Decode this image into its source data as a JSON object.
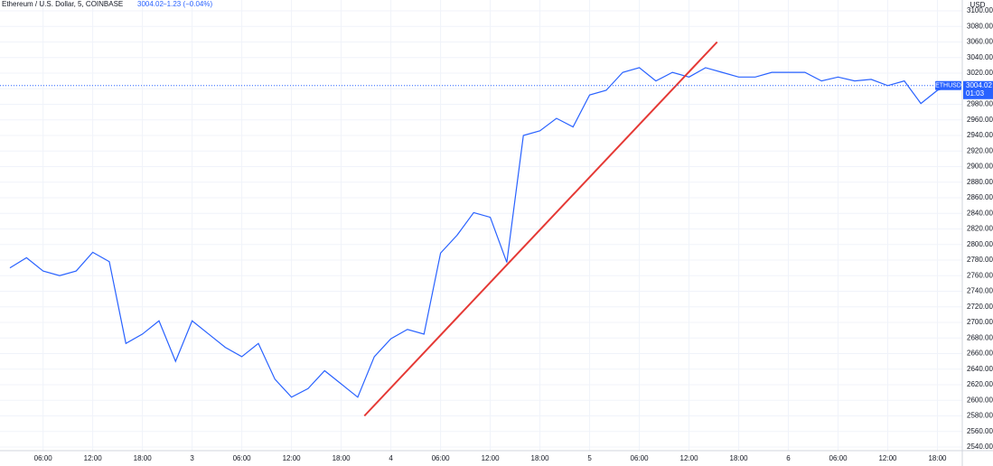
{
  "chart_data": {
    "type": "line",
    "title": "Ethereum / U.S. Dollar, 5, COINBASE",
    "last": 3004.02,
    "change": "−1.23 (−0.04%)",
    "symbol": "ETHUSD",
    "countdown": "01:03",
    "currency": "USD",
    "series": [
      {
        "name": "ETHUSD",
        "color": "#2962ff",
        "values": [
          2770,
          2783,
          2766,
          2760,
          2766,
          2790,
          2778,
          2673,
          2685,
          2702,
          2650,
          2702,
          2685,
          2668,
          2656,
          2673,
          2627,
          2604,
          2615,
          2638,
          2621,
          2604,
          2656,
          2679,
          2691,
          2685,
          2789,
          2812,
          2841,
          2835,
          2777,
          2940,
          2946,
          2962,
          2951,
          2992,
          2998,
          3021,
          3027,
          3010,
          3021,
          3015,
          3027,
          3021,
          3015,
          3015,
          3021,
          3021,
          3021,
          3010,
          3015,
          3010,
          3012,
          3004,
          3010,
          2981,
          2998,
          3004
        ]
      }
    ],
    "trendline": {
      "color": "#e53935",
      "x": [
        21.4,
        42.7
      ],
      "values": [
        2580,
        3060
      ]
    },
    "xlim": [
      -0.6,
      57.5
    ],
    "xticks": [
      {
        "value": 2,
        "label": "06:00"
      },
      {
        "value": 5,
        "label": "12:00"
      },
      {
        "value": 8,
        "label": "18:00"
      },
      {
        "value": 11,
        "label": "3"
      },
      {
        "value": 14,
        "label": "06:00"
      },
      {
        "value": 17,
        "label": "12:00"
      },
      {
        "value": 20,
        "label": "18:00"
      },
      {
        "value": 23,
        "label": "4"
      },
      {
        "value": 26,
        "label": "06:00"
      },
      {
        "value": 29,
        "label": "12:00"
      },
      {
        "value": 32,
        "label": "18:00"
      },
      {
        "value": 35,
        "label": "5"
      },
      {
        "value": 38,
        "label": "06:00"
      },
      {
        "value": 41,
        "label": "12:00"
      },
      {
        "value": 44,
        "label": "18:00"
      },
      {
        "value": 47,
        "label": "6"
      },
      {
        "value": 50,
        "label": "06:00"
      },
      {
        "value": 53,
        "label": "12:00"
      },
      {
        "value": 56,
        "label": "18:00"
      }
    ],
    "ylim": [
      2540,
      3100
    ],
    "yticks": [
      {
        "value": 3100,
        "label": "3100.00"
      },
      {
        "value": 3080,
        "label": "3080.00"
      },
      {
        "value": 3060,
        "label": "3060.00"
      },
      {
        "value": 3040,
        "label": "3040.00"
      },
      {
        "value": 3020,
        "label": "3020.00"
      },
      {
        "value": 3000,
        "label": "3000.00"
      },
      {
        "value": 2980,
        "label": "2980.00"
      },
      {
        "value": 2960,
        "label": "2960.00"
      },
      {
        "value": 2940,
        "label": "2940.00"
      },
      {
        "value": 2920,
        "label": "2920.00"
      },
      {
        "value": 2900,
        "label": "2900.00"
      },
      {
        "value": 2880,
        "label": "2880.00"
      },
      {
        "value": 2860,
        "label": "2860.00"
      },
      {
        "value": 2840,
        "label": "2840.00"
      },
      {
        "value": 2820,
        "label": "2820.00"
      },
      {
        "value": 2800,
        "label": "2800.00"
      },
      {
        "value": 2780,
        "label": "2780.00"
      },
      {
        "value": 2760,
        "label": "2760.00"
      },
      {
        "value": 2740,
        "label": "2740.00"
      },
      {
        "value": 2720,
        "label": "2720.00"
      },
      {
        "value": 2700,
        "label": "2700.00"
      },
      {
        "value": 2680,
        "label": "2680.00"
      },
      {
        "value": 2660,
        "label": "2660.00"
      },
      {
        "value": 2640,
        "label": "2640.00"
      },
      {
        "value": 2620,
        "label": "2620.00"
      },
      {
        "value": 2600,
        "label": "2600.00"
      },
      {
        "value": 2580,
        "label": "2580.00"
      },
      {
        "value": 2560,
        "label": "2560.00"
      },
      {
        "value": 2540,
        "label": "2540.00"
      }
    ],
    "grid": true
  }
}
